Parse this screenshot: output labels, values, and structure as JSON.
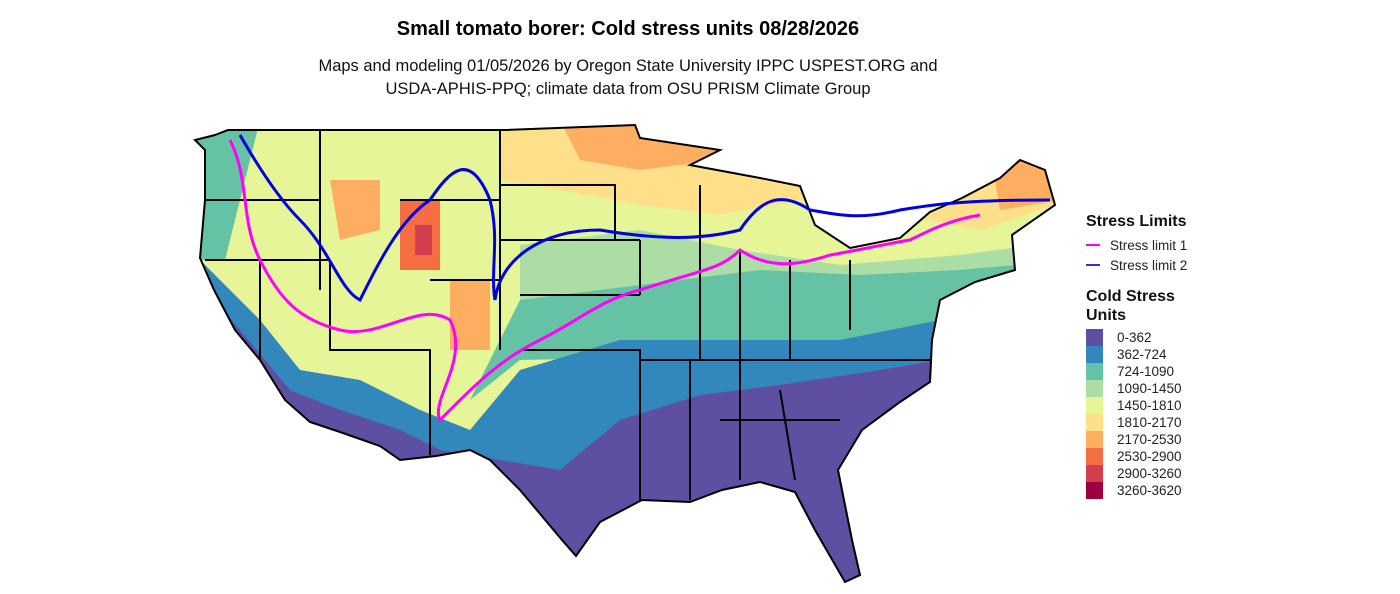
{
  "title": "Small tomato borer: Cold stress units 08/28/2026",
  "subtitle_line1": "Maps and modeling 01/05/2026 by Oregon State University IPPC USPEST.ORG and",
  "subtitle_line2": "USDA-APHIS-PPQ; climate data from OSU PRISM Climate Group",
  "stress_legend": {
    "title": "Stress Limits",
    "items": [
      {
        "label": "Stress limit 1",
        "color": "#FF00FF"
      },
      {
        "label": "Stress limit 2",
        "color": "#0000E0"
      }
    ]
  },
  "cold_legend": {
    "title_line1": "Cold Stress",
    "title_line2": "Units",
    "items": [
      {
        "label": "0-362",
        "color": "#5E4FA2"
      },
      {
        "label": "362-724",
        "color": "#3288BD"
      },
      {
        "label": "724-1090",
        "color": "#66C2A5"
      },
      {
        "label": "1090-1450",
        "color": "#ABDDA4"
      },
      {
        "label": "1450-1810",
        "color": "#E6F598"
      },
      {
        "label": "1810-2170",
        "color": "#FEE08B"
      },
      {
        "label": "2170-2530",
        "color": "#FDAE61"
      },
      {
        "label": "2530-2900",
        "color": "#F46D43"
      },
      {
        "label": "2900-3260",
        "color": "#D53E4F"
      },
      {
        "label": "3260-3620",
        "color": "#9E0142"
      }
    ]
  }
}
